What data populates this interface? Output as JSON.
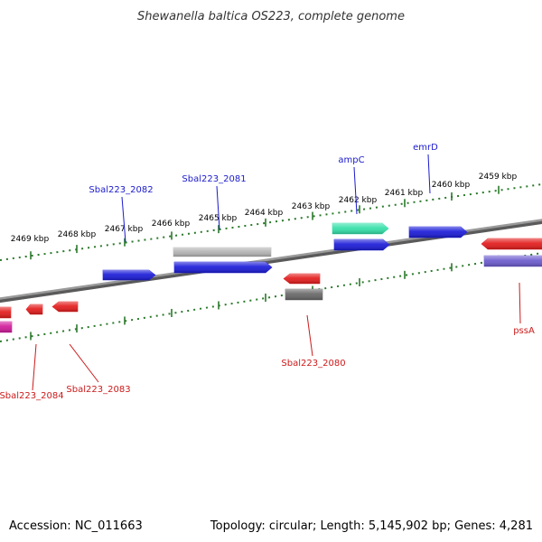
{
  "header": {
    "title": "Shewanella baltica OS223, complete genome"
  },
  "footer": {
    "accession": "Accession: NC_011663",
    "summary": "Topology: circular; Length: 5,145,902 bp; Genes: 4,281"
  },
  "colors": {
    "backbone": "#808080",
    "tick": "#2a7a2a",
    "forward_label": "#1a1acc",
    "reverse_label": "#cc1a1a",
    "leader": "#4a4a4a"
  },
  "scale": {
    "ticks": [
      "2469 kbp",
      "2468 kbp",
      "2467 kbp",
      "2466 kbp",
      "2465 kbp",
      "2464 kbp",
      "2463 kbp",
      "2462 kbp",
      "2461 kbp",
      "2460 kbp",
      "2459 kbp"
    ]
  },
  "features": {
    "forward_labels": [
      "Sbal223_2082",
      "Sbal223_2081",
      "ampC",
      "emrD"
    ],
    "reverse_labels": [
      "Sbal223_2084",
      "Sbal223_2083",
      "Sbal223_2080",
      "pssA"
    ],
    "blocks": [
      {
        "name": "gene-block-sbal223-2082",
        "color": "#1a1ad8"
      },
      {
        "name": "gene-block-sbal223-2081-top",
        "color": "#b3b3b3"
      },
      {
        "name": "gene-block-sbal223-2081",
        "color": "#1a1ad8"
      },
      {
        "name": "gene-block-ampc-top",
        "color": "#33e0a8"
      },
      {
        "name": "gene-block-ampc",
        "color": "#1a1ad8"
      },
      {
        "name": "gene-block-emrd",
        "color": "#1a1ad8"
      },
      {
        "name": "gene-block-right-red",
        "color": "#e31a1a"
      },
      {
        "name": "gene-block-right-purple",
        "color": "#6a5acd"
      },
      {
        "name": "gene-block-sbal223-2080",
        "color": "#e31a1a"
      },
      {
        "name": "gene-block-sbal223-2080-gray",
        "color": "#666666"
      },
      {
        "name": "gene-block-sbal223-2083",
        "color": "#e31a1a"
      },
      {
        "name": "gene-block-sbal223-2084",
        "color": "#e31a1a"
      },
      {
        "name": "gene-block-left-red",
        "color": "#e31a1a"
      },
      {
        "name": "gene-block-left-magenta",
        "color": "#d01a9a"
      }
    ]
  }
}
